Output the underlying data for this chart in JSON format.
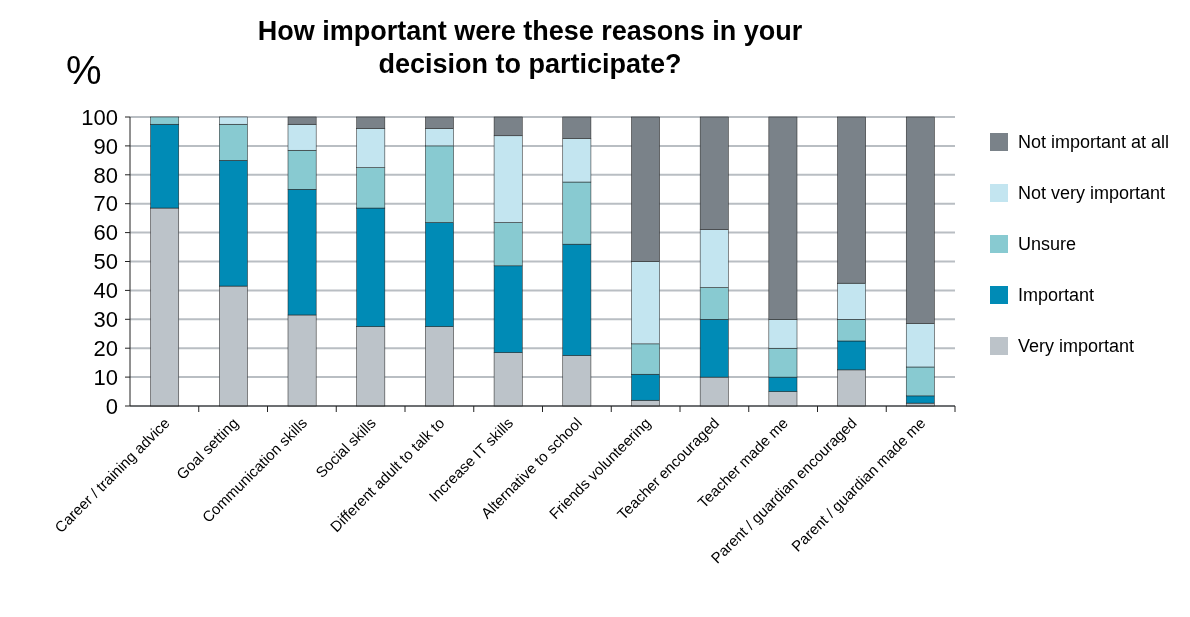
{
  "chart_data": {
    "type": "bar",
    "stacked": true,
    "title": "How important were these reasons in your decision to participate?",
    "ylabel": "%",
    "categories": [
      "Career / training advice",
      "Goal setting",
      "Communication skills",
      "Social skills",
      "Different adult to talk to",
      "Increase IT skills",
      "Alternative to school",
      "Friends  volunteering",
      "Teacher  encouraged",
      "Teacher made me",
      "Parent / guardian encouraged",
      "Parent / guardian made me"
    ],
    "series": [
      {
        "name": "Very important",
        "color": "#bcc3c9",
        "values": [
          68.5,
          41.5,
          31.5,
          27.5,
          27.5,
          18.5,
          17.5,
          2,
          10,
          5,
          12.5,
          1
        ]
      },
      {
        "name": "Important",
        "color": "#008bb6",
        "values": [
          29,
          43.5,
          43.5,
          41,
          36,
          30,
          38.5,
          9,
          20,
          5,
          10,
          2.5
        ]
      },
      {
        "name": "Unsure",
        "color": "#88cad1",
        "values": [
          2.5,
          12.5,
          13.5,
          14,
          26.5,
          15,
          21.5,
          10.5,
          11,
          10,
          7.5,
          10
        ]
      },
      {
        "name": "Not very important",
        "color": "#c3e5f0",
        "values": [
          0,
          2.5,
          9,
          13.5,
          6,
          30,
          15,
          28.5,
          20,
          10,
          12.5,
          15
        ]
      },
      {
        "name": "Not important at all",
        "color": "#7a8289",
        "values": [
          0,
          0,
          2.5,
          4,
          4,
          6.5,
          7.5,
          50,
          39,
          70,
          57.5,
          71.5
        ]
      }
    ],
    "ylim": [
      0,
      100
    ],
    "yticks": [
      0,
      10,
      20,
      30,
      40,
      50,
      60,
      70,
      80,
      90,
      100
    ],
    "grid": "y",
    "legend": "right"
  }
}
